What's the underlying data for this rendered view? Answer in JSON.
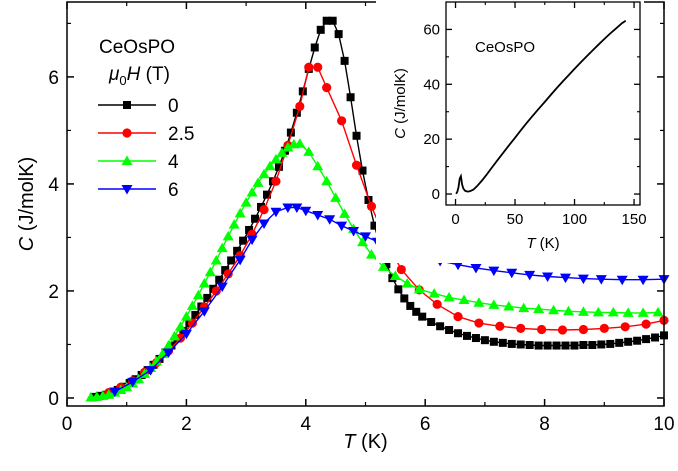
{
  "chart_data": [
    {
      "type": "line",
      "role": "main",
      "x_quantity": "T",
      "x_unit": " (K)",
      "y_quantity": "C",
      "y_unit": " (J/molK)",
      "xlim": [
        0,
        10
      ],
      "ylim": [
        -0.15,
        7.4
      ],
      "x_ticks": [
        0,
        2,
        4,
        6,
        8,
        10
      ],
      "y_ticks": [
        0,
        2,
        4,
        6
      ],
      "grid": false,
      "legend_placement": "top-left",
      "legend_title": "CeOsPO",
      "legend_field_symbol": "μ",
      "legend_field_sub": "0",
      "legend_field_var": "H",
      "legend_field_unit": " (T)",
      "series": [
        {
          "name": "0",
          "color": "#000000",
          "marker": "square",
          "x": [
            0.45,
            0.55,
            0.65,
            0.75,
            0.85,
            0.95,
            1.05,
            1.15,
            1.25,
            1.35,
            1.45,
            1.55,
            1.65,
            1.75,
            1.85,
            1.95,
            2.05,
            2.15,
            2.25,
            2.35,
            2.45,
            2.55,
            2.65,
            2.75,
            2.85,
            2.95,
            3.05,
            3.15,
            3.25,
            3.35,
            3.45,
            3.55,
            3.65,
            3.75,
            3.85,
            3.95,
            4.05,
            4.15,
            4.25,
            4.35,
            4.45,
            4.55,
            4.65,
            4.75,
            4.85,
            4.95,
            5.05,
            5.15,
            5.25,
            5.35,
            5.45,
            5.55,
            5.65,
            5.75,
            5.85,
            5.95,
            6.1,
            6.25,
            6.4,
            6.55,
            6.7,
            6.85,
            7.0,
            7.15,
            7.3,
            7.45,
            7.6,
            7.75,
            7.9,
            8.05,
            8.2,
            8.35,
            8.5,
            8.65,
            8.8,
            8.95,
            9.1,
            9.25,
            9.4,
            9.55,
            9.7,
            9.85,
            10.0
          ],
          "y": [
            0.02,
            0.04,
            0.06,
            0.1,
            0.15,
            0.21,
            0.28,
            0.35,
            0.43,
            0.52,
            0.62,
            0.73,
            0.85,
            0.98,
            1.11,
            1.25,
            1.4,
            1.55,
            1.71,
            1.87,
            2.04,
            2.21,
            2.39,
            2.57,
            2.75,
            2.94,
            3.14,
            3.35,
            3.57,
            3.8,
            4.05,
            4.32,
            4.62,
            4.96,
            5.33,
            5.73,
            6.15,
            6.55,
            6.88,
            7.05,
            7.05,
            6.8,
            6.3,
            5.62,
            4.9,
            4.25,
            3.7,
            3.22,
            2.82,
            2.5,
            2.24,
            2.03,
            1.86,
            1.72,
            1.61,
            1.52,
            1.42,
            1.34,
            1.27,
            1.21,
            1.16,
            1.12,
            1.08,
            1.05,
            1.03,
            1.01,
            1.0,
            0.99,
            0.98,
            0.98,
            0.98,
            0.98,
            0.98,
            0.99,
            0.99,
            1.0,
            1.01,
            1.03,
            1.05,
            1.07,
            1.1,
            1.13,
            1.17
          ]
        },
        {
          "name": "2.5",
          "color": "#ff0000",
          "marker": "circle",
          "x": [
            0.7,
            0.9,
            1.1,
            1.3,
            1.5,
            1.7,
            1.9,
            2.1,
            2.3,
            2.5,
            2.7,
            2.9,
            3.1,
            3.3,
            3.5,
            3.7,
            3.9,
            4.05,
            4.2,
            4.35,
            4.6,
            4.85,
            5.1,
            5.35,
            5.6,
            5.9,
            6.2,
            6.55,
            6.9,
            7.25,
            7.6,
            7.95,
            8.3,
            8.65,
            9.0,
            9.35,
            9.7,
            10.0
          ],
          "y": [
            0.1,
            0.2,
            0.32,
            0.48,
            0.66,
            0.88,
            1.12,
            1.4,
            1.7,
            2.0,
            2.32,
            2.66,
            3.06,
            3.52,
            4.05,
            4.72,
            5.45,
            6.18,
            6.18,
            5.8,
            5.18,
            4.35,
            3.58,
            2.92,
            2.4,
            2.02,
            1.75,
            1.52,
            1.4,
            1.34,
            1.3,
            1.28,
            1.27,
            1.28,
            1.3,
            1.33,
            1.38,
            1.45
          ]
        },
        {
          "name": "4",
          "color": "#00ff00",
          "marker": "triangle-up",
          "x": [
            0.4,
            0.5,
            0.6,
            0.7,
            0.8,
            0.9,
            1.0,
            1.1,
            1.2,
            1.3,
            1.4,
            1.5,
            1.6,
            1.7,
            1.8,
            1.9,
            2.0,
            2.1,
            2.2,
            2.3,
            2.4,
            2.5,
            2.6,
            2.7,
            2.8,
            2.9,
            3.0,
            3.1,
            3.2,
            3.3,
            3.4,
            3.5,
            3.6,
            3.7,
            3.8,
            3.9,
            4.05,
            4.2,
            4.35,
            4.5,
            4.65,
            4.8,
            4.95,
            5.1,
            5.3,
            5.5,
            5.7,
            5.9,
            6.15,
            6.4,
            6.65,
            6.9,
            7.15,
            7.4,
            7.65,
            7.9,
            8.15,
            8.4,
            8.65,
            8.9,
            9.15,
            9.4,
            9.65,
            9.9
          ],
          "y": [
            0.01,
            0.02,
            0.04,
            0.06,
            0.1,
            0.15,
            0.2,
            0.27,
            0.35,
            0.45,
            0.56,
            0.68,
            0.82,
            0.98,
            1.15,
            1.33,
            1.52,
            1.72,
            1.92,
            2.14,
            2.35,
            2.57,
            2.8,
            3.02,
            3.24,
            3.45,
            3.65,
            3.84,
            4.02,
            4.18,
            4.33,
            4.46,
            4.58,
            4.68,
            4.74,
            4.75,
            4.6,
            4.33,
            4.05,
            3.74,
            3.44,
            3.16,
            2.91,
            2.68,
            2.45,
            2.28,
            2.14,
            2.03,
            1.95,
            1.88,
            1.83,
            1.78,
            1.74,
            1.71,
            1.68,
            1.66,
            1.64,
            1.62,
            1.61,
            1.6,
            1.6,
            1.59,
            1.59,
            1.6
          ]
        },
        {
          "name": "6",
          "color": "#0000ff",
          "marker": "triangle-down",
          "x": [
            0.8,
            1.1,
            1.4,
            1.7,
            2.0,
            2.3,
            2.6,
            2.9,
            3.1,
            3.3,
            3.5,
            3.7,
            3.85,
            4.0,
            4.2,
            4.4,
            4.6,
            4.8,
            5.0,
            5.2,
            5.45,
            5.7,
            5.95,
            6.25,
            6.55,
            6.85,
            7.15,
            7.45,
            7.75,
            8.05,
            8.35,
            8.65,
            8.95,
            9.3,
            9.65,
            10.0
          ],
          "y": [
            0.12,
            0.3,
            0.52,
            0.85,
            1.2,
            1.62,
            2.08,
            2.58,
            2.96,
            3.26,
            3.48,
            3.56,
            3.56,
            3.5,
            3.42,
            3.34,
            3.22,
            3.12,
            3.02,
            2.92,
            2.82,
            2.72,
            2.63,
            2.56,
            2.49,
            2.43,
            2.38,
            2.34,
            2.3,
            2.27,
            2.25,
            2.23,
            2.22,
            2.21,
            2.21,
            2.22
          ]
        }
      ]
    },
    {
      "type": "line",
      "role": "inset",
      "annotation": "CeOsPO",
      "x_quantity": "T",
      "x_unit": " (K)",
      "y_quantity": "C",
      "y_unit": " (J/molK)",
      "xlim": [
        -8,
        155
      ],
      "ylim": [
        -4,
        70
      ],
      "x_ticks": [
        0,
        50,
        100,
        150
      ],
      "y_ticks": [
        0,
        20,
        40,
        60
      ],
      "grid": false,
      "series": [
        {
          "color": "#000000",
          "x": [
            0.5,
            1.5,
            2.5,
            3.5,
            4.5,
            5.5,
            6.5,
            8,
            10,
            12,
            15,
            18,
            22,
            26,
            30,
            35,
            40,
            45,
            50,
            55,
            60,
            65,
            70,
            75,
            80,
            85,
            90,
            95,
            100,
            105,
            110,
            115,
            120,
            125,
            130,
            135,
            140,
            143
          ],
          "y": [
            0.1,
            0.8,
            2.5,
            5.6,
            6.5,
            3.5,
            2.0,
            1.2,
            0.9,
            1.0,
            1.6,
            2.8,
            4.8,
            7.0,
            9.3,
            12.2,
            15.0,
            17.8,
            20.5,
            23.3,
            26.0,
            28.6,
            31.1,
            33.6,
            36.1,
            38.6,
            41.0,
            43.3,
            45.6,
            47.9,
            50.1,
            52.3,
            54.4,
            56.5,
            58.5,
            60.4,
            62.3,
            63.2
          ]
        }
      ]
    }
  ]
}
